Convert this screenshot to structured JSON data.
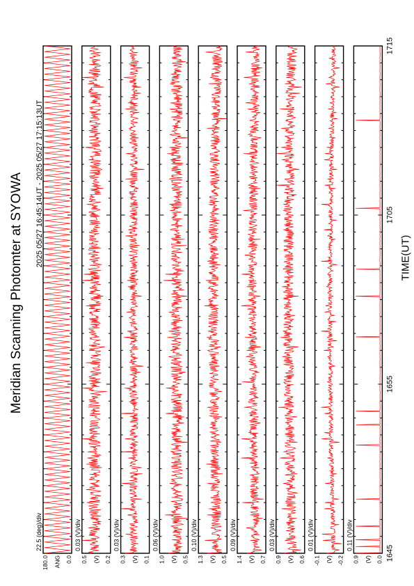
{
  "title": "Meridian Scanning Photomter at SYOWA",
  "subtitle": "2025 05/27 16:45:14UT - 2025 05/27 17:15:13UT",
  "chart_data": {
    "type": "line",
    "title": "Meridian Scanning Photomter at SYOWA",
    "subtitle": "2025 05/27 16:45:14UT - 2025 05/27 17:15:13UT",
    "xlabel": "TIME(UT)",
    "x_ticks": [
      "1645",
      "1655",
      "1705",
      "1715"
    ],
    "x_range_minutes": [
      0,
      30
    ],
    "grid": false,
    "line_color": "#ff0000",
    "panels": [
      {
        "scale": "22.5 (deg)/div",
        "unit": "ANG",
        "ymax": "180.0",
        "ymin": "0.0",
        "ylim": [
          0,
          180
        ],
        "kind": "scan",
        "baseline": 0.5,
        "noise": 0.0
      },
      {
        "scale": "0.03 (V)/div",
        "unit": "(V)",
        "ch": "CH2",
        "ymax": "0.5",
        "ymin": "0.2",
        "ylim": [
          0.2,
          0.5
        ],
        "kind": "noisy",
        "baseline": 0.55,
        "noise": 0.22
      },
      {
        "scale": "0.03 (V)/div",
        "unit": "(V)",
        "ch": "CH3",
        "ymax": "0.3",
        "ymin": "0.1",
        "ylim": [
          0.1,
          0.3
        ],
        "kind": "noisy",
        "baseline": 0.55,
        "noise": 0.15
      },
      {
        "scale": "0.06 (V)/div",
        "unit": "(V)",
        "ch": "CH4",
        "ymax": "1.0",
        "ymin": "0.5",
        "ylim": [
          0.5,
          1.0
        ],
        "kind": "noisy",
        "baseline": 0.4,
        "noise": 0.2
      },
      {
        "scale": "0.10 (V)/div",
        "unit": "(V)",
        "ch": "CH5",
        "ymax": "1.3",
        "ymin": "0.5",
        "ylim": [
          0.5,
          1.3
        ],
        "kind": "noisy",
        "baseline": 0.35,
        "noise": 0.18
      },
      {
        "scale": "0.09 (V)/div",
        "unit": "(V)",
        "ch": "CH6",
        "ymax": "1.4",
        "ymin": "0.7",
        "ylim": [
          0.7,
          1.4
        ],
        "kind": "noisy",
        "baseline": 0.35,
        "noise": 0.16
      },
      {
        "scale": "0.03 (V)/div",
        "unit": "(V)",
        "ch": "CH7",
        "ymax": "0.9",
        "ymin": "0.6",
        "ylim": [
          0.6,
          0.9
        ],
        "kind": "noisy",
        "baseline": 0.45,
        "noise": 0.18
      },
      {
        "scale": "0.01 (V)/div",
        "unit": "(V)",
        "ch": "CH8",
        "ymax": "-0.1",
        "ymin": "-0.2",
        "ylim": [
          -0.2,
          -0.1
        ],
        "kind": "noisy",
        "baseline": 0.35,
        "noise": 0.08
      },
      {
        "scale": "0.11 (V)/div",
        "unit": "(V)",
        "ch": "CH9",
        "ymax": "0.9",
        "ymin": "0.0",
        "ylim": [
          0.0,
          0.9
        ],
        "kind": "spikes",
        "baseline": 0.08,
        "noise": 0.01
      }
    ]
  }
}
